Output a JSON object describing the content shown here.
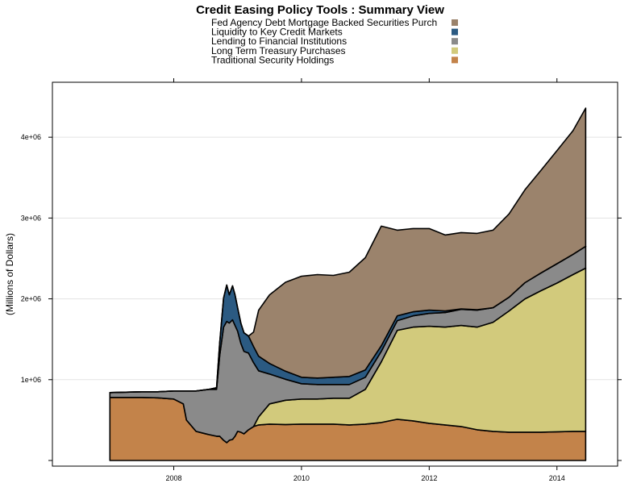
{
  "chart_data": {
    "type": "area",
    "stacked": true,
    "title": "Credit Easing Policy Tools : Summary View",
    "xlabel": "",
    "ylabel": "(Millions of Dollars)",
    "xlim": [
      2006.1,
      2014.95
    ],
    "ylim": [
      -70000,
      4680000
    ],
    "x_ticks": [
      2008,
      2010,
      2012,
      2014
    ],
    "x_tick_labels": [
      "2008",
      "2010",
      "2012",
      "2014"
    ],
    "y_ticks": [
      0,
      1000000,
      2000000,
      3000000,
      4000000
    ],
    "y_tick_labels": [
      "",
      "1e+06",
      "2e+06",
      "3e+06",
      "4e+06"
    ],
    "grid": "horizontal",
    "legend_position": "top",
    "x": [
      2007.0,
      2007.5,
      2007.75,
      2008.0,
      2008.15,
      2008.2,
      2008.35,
      2008.55,
      2008.67,
      2008.72,
      2008.78,
      2008.83,
      2008.87,
      2008.92,
      2008.96,
      2009.0,
      2009.05,
      2009.1,
      2009.17,
      2009.25,
      2009.33,
      2009.5,
      2009.75,
      2010.0,
      2010.25,
      2010.5,
      2010.75,
      2011.0,
      2011.25,
      2011.5,
      2011.75,
      2012.0,
      2012.25,
      2012.5,
      2012.75,
      2013.0,
      2013.25,
      2013.5,
      2013.75,
      2014.0,
      2014.25,
      2014.45
    ],
    "series": [
      {
        "name": "Traditional Security Holdings",
        "color": "#c3834a",
        "values": [
          780000,
          780000,
          775000,
          760000,
          700000,
          500000,
          360000,
          320000,
          300000,
          300000,
          250000,
          220000,
          250000,
          260000,
          300000,
          360000,
          350000,
          330000,
          380000,
          420000,
          440000,
          450000,
          445000,
          450000,
          450000,
          450000,
          440000,
          450000,
          470000,
          510000,
          490000,
          460000,
          440000,
          420000,
          380000,
          360000,
          350000,
          350000,
          350000,
          355000,
          360000,
          360000
        ]
      },
      {
        "name": "Long Term Treasury Purchases",
        "color": "#d2ca7c",
        "values": [
          0,
          0,
          0,
          0,
          0,
          0,
          0,
          0,
          0,
          0,
          0,
          0,
          0,
          0,
          0,
          0,
          0,
          0,
          0,
          0,
          100000,
          250000,
          300000,
          310000,
          310000,
          320000,
          330000,
          430000,
          750000,
          1100000,
          1160000,
          1200000,
          1210000,
          1250000,
          1270000,
          1350000,
          1500000,
          1650000,
          1750000,
          1840000,
          1940000,
          2020000
        ]
      },
      {
        "name": "Lending to Financial Institutions",
        "color": "#8a8a8a",
        "values": [
          60000,
          70000,
          75000,
          100000,
          160000,
          360000,
          500000,
          560000,
          580000,
          1000000,
          1400000,
          1500000,
          1450000,
          1480000,
          1370000,
          1240000,
          1100000,
          1020000,
          950000,
          790000,
          570000,
          370000,
          260000,
          190000,
          180000,
          170000,
          170000,
          150000,
          130000,
          120000,
          140000,
          160000,
          180000,
          200000,
          210000,
          180000,
          170000,
          200000,
          220000,
          240000,
          250000,
          270000
        ]
      },
      {
        "name": "Liquidity to Key Credit Markets",
        "color": "#2b5a82",
        "values": [
          0,
          0,
          0,
          0,
          0,
          0,
          0,
          0,
          20000,
          160000,
          360000,
          450000,
          350000,
          420000,
          380000,
          290000,
          250000,
          230000,
          210000,
          200000,
          180000,
          130000,
          100000,
          80000,
          80000,
          90000,
          100000,
          90000,
          70000,
          60000,
          50000,
          40000,
          20000,
          5000,
          5000,
          0,
          0,
          0,
          0,
          0,
          0,
          0
        ]
      },
      {
        "name": "Fed Agency Debt  Mortgage Backed Securities Purch",
        "color": "#9b836c",
        "values": [
          0,
          0,
          0,
          0,
          0,
          0,
          0,
          0,
          0,
          0,
          0,
          0,
          0,
          0,
          0,
          0,
          0,
          0,
          0,
          180000,
          570000,
          850000,
          1100000,
          1250000,
          1280000,
          1260000,
          1290000,
          1390000,
          1480000,
          1060000,
          1030000,
          1010000,
          940000,
          945000,
          945000,
          960000,
          1030000,
          1150000,
          1270000,
          1400000,
          1530000,
          1710000
        ]
      }
    ]
  }
}
